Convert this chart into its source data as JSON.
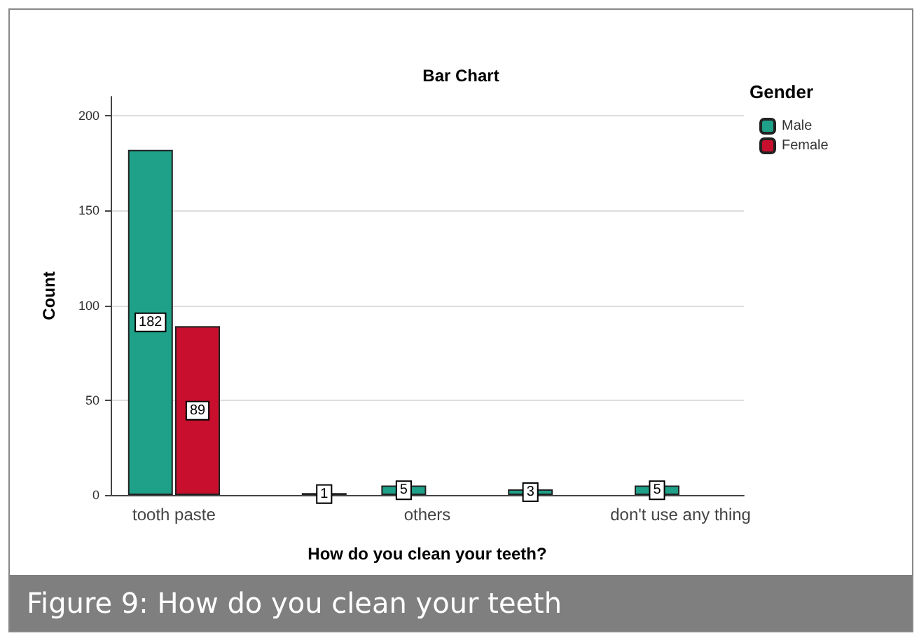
{
  "chart_data": {
    "type": "bar",
    "title": "Bar Chart",
    "xlabel": "How do you clean your teeth?",
    "ylabel": "Count",
    "legend_title": "Gender",
    "categories": [
      "tooth paste",
      null,
      "others",
      null,
      "don't use any thing"
    ],
    "series": [
      {
        "name": "Male",
        "color": "#1fa189",
        "values": [
          182,
          null,
          5,
          3,
          5
        ]
      },
      {
        "name": "Female",
        "color": "#c8102e",
        "values": [
          89,
          1,
          null,
          null,
          null
        ]
      }
    ],
    "ylim": [
      0,
      210
    ],
    "yticks": [
      0,
      50,
      100,
      150,
      200
    ],
    "grid": "y",
    "legend": "top right",
    "data_labels": true,
    "annotations": [
      "Figure 9: How do you clean your teeth"
    ]
  }
}
